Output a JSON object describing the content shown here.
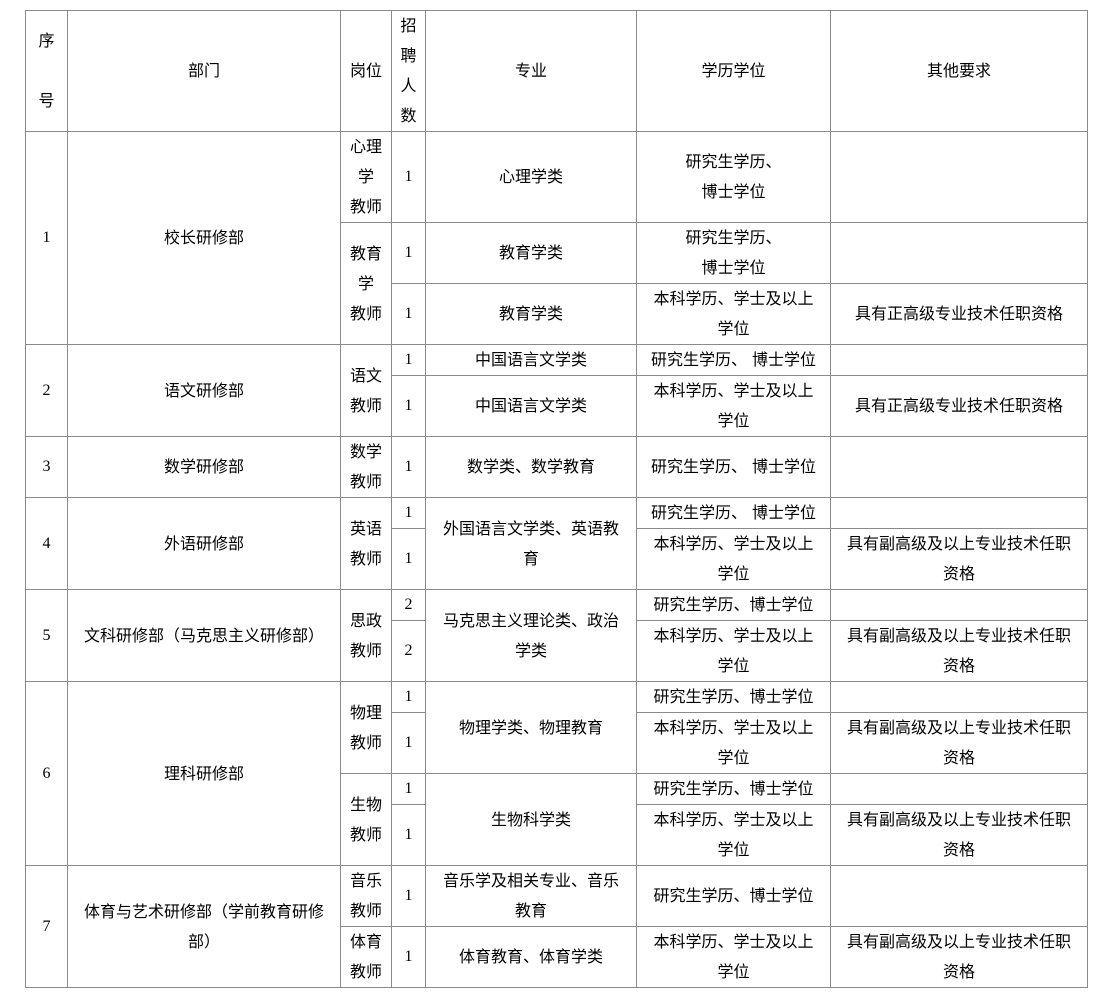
{
  "header": [
    "序\n\n号",
    "部门",
    "岗位",
    "招\n聘\n人\n数",
    "专业",
    "学历学位",
    "其他要求"
  ],
  "rows": [
    [
      {
        "t": "1",
        "rs": 3,
        "c": 0
      },
      {
        "t": "校长研修部",
        "rs": 3,
        "c": 1
      },
      {
        "t": "心理\n学\n教师",
        "c": 2
      },
      {
        "t": "1",
        "c": 3
      },
      {
        "t": "心理学类",
        "c": 4
      },
      {
        "t": "研究生学历、\n博士学位",
        "c": 5
      },
      {
        "t": "",
        "c": 6
      }
    ],
    [
      {
        "t": "教育\n学\n教师",
        "rs": 2,
        "c": 2
      },
      {
        "t": "1",
        "c": 3
      },
      {
        "t": "教育学类",
        "c": 4
      },
      {
        "t": "研究生学历、\n博士学位",
        "c": 5
      },
      {
        "t": "",
        "c": 6
      }
    ],
    [
      {
        "t": "1",
        "c": 3
      },
      {
        "t": "教育学类",
        "c": 4
      },
      {
        "t": "本科学历、学士及以上\n学位",
        "c": 5
      },
      {
        "t": "具有正高级专业技术任职资格",
        "c": 6
      }
    ],
    [
      {
        "t": "2",
        "rs": 2,
        "c": 0
      },
      {
        "t": "语文研修部",
        "rs": 2,
        "c": 1
      },
      {
        "t": "语文\n教师",
        "rs": 2,
        "c": 2
      },
      {
        "t": "1",
        "c": 3
      },
      {
        "t": "中国语言文学类",
        "c": 4
      },
      {
        "t": "研究生学历、 博士学位",
        "c": 5
      },
      {
        "t": "",
        "c": 6
      }
    ],
    [
      {
        "t": "1",
        "c": 3
      },
      {
        "t": "中国语言文学类",
        "c": 4
      },
      {
        "t": "本科学历、学士及以上\n学位",
        "c": 5
      },
      {
        "t": "具有正高级专业技术任职资格",
        "c": 6
      }
    ],
    [
      {
        "t": "3",
        "c": 0
      },
      {
        "t": "数学研修部",
        "c": 1
      },
      {
        "t": "数学\n教师",
        "c": 2
      },
      {
        "t": "1",
        "c": 3
      },
      {
        "t": "数学类、数学教育",
        "c": 4
      },
      {
        "t": "研究生学历、 博士学位",
        "c": 5
      },
      {
        "t": "",
        "c": 6
      }
    ],
    [
      {
        "t": "4",
        "rs": 2,
        "c": 0
      },
      {
        "t": "外语研修部",
        "rs": 2,
        "c": 1
      },
      {
        "t": "英语\n教师",
        "rs": 2,
        "c": 2
      },
      {
        "t": "1",
        "c": 3
      },
      {
        "t": "外国语言文学类、英语教\n育",
        "rs": 2,
        "c": 4
      },
      {
        "t": "研究生学历、 博士学位",
        "c": 5
      },
      {
        "t": "",
        "c": 6
      }
    ],
    [
      {
        "t": "1",
        "c": 3
      },
      {
        "t": "本科学历、学士及以上\n学位",
        "c": 5
      },
      {
        "t": "具有副高级及以上专业技术任职\n资格",
        "c": 6
      }
    ],
    [
      {
        "t": "5",
        "rs": 2,
        "c": 0
      },
      {
        "t": "文科研修部（马克思主义研修部）",
        "rs": 2,
        "c": 1
      },
      {
        "t": "思政\n教师",
        "rs": 2,
        "c": 2
      },
      {
        "t": "2",
        "c": 3
      },
      {
        "t": "马克思主义理论类、政治\n学类",
        "rs": 2,
        "c": 4
      },
      {
        "t": "研究生学历、博士学位",
        "c": 5
      },
      {
        "t": "",
        "c": 6
      }
    ],
    [
      {
        "t": "2",
        "c": 3
      },
      {
        "t": "本科学历、学士及以上\n学位",
        "c": 5
      },
      {
        "t": "具有副高级及以上专业技术任职\n资格",
        "c": 6
      }
    ],
    [
      {
        "t": "6",
        "rs": 4,
        "c": 0
      },
      {
        "t": "理科研修部",
        "rs": 4,
        "c": 1
      },
      {
        "t": "物理\n教师",
        "rs": 2,
        "c": 2
      },
      {
        "t": "1",
        "c": 3
      },
      {
        "t": "物理学类、物理教育",
        "rs": 2,
        "c": 4
      },
      {
        "t": "研究生学历、博士学位",
        "c": 5
      },
      {
        "t": "",
        "c": 6
      }
    ],
    [
      {
        "t": "1",
        "c": 3
      },
      {
        "t": "本科学历、学士及以上\n学位",
        "c": 5
      },
      {
        "t": "具有副高级及以上专业技术任职\n资格",
        "c": 6
      }
    ],
    [
      {
        "t": "生物\n教师",
        "rs": 2,
        "c": 2
      },
      {
        "t": "1",
        "c": 3
      },
      {
        "t": "生物科学类",
        "rs": 2,
        "c": 4
      },
      {
        "t": "研究生学历、博士学位",
        "c": 5
      },
      {
        "t": "",
        "c": 6
      }
    ],
    [
      {
        "t": "1",
        "c": 3
      },
      {
        "t": "本科学历、学士及以上\n学位",
        "c": 5
      },
      {
        "t": "具有副高级及以上专业技术任职\n资格",
        "c": 6
      }
    ],
    [
      {
        "t": "7",
        "rs": 2,
        "c": 0
      },
      {
        "t": "体育与艺术研修部（学前教育研修\n部）",
        "rs": 2,
        "c": 1
      },
      {
        "t": "音乐\n教师",
        "c": 2
      },
      {
        "t": "1",
        "c": 3
      },
      {
        "t": "音乐学及相关专业、音乐\n教育",
        "c": 4
      },
      {
        "t": "研究生学历、博士学位",
        "c": 5
      },
      {
        "t": "",
        "c": 6
      }
    ],
    [
      {
        "t": "体育\n教师",
        "c": 2
      },
      {
        "t": "1",
        "c": 3
      },
      {
        "t": "体育教育、体育学类",
        "c": 4
      },
      {
        "t": "本科学历、学士及以上\n学位",
        "c": 5
      },
      {
        "t": "具有副高级及以上专业技术任职\n资格",
        "c": 6
      }
    ]
  ]
}
